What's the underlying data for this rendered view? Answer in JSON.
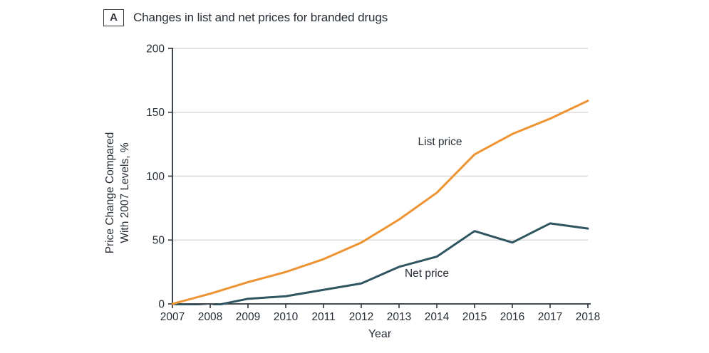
{
  "panel": {
    "label": "A",
    "title": "Changes in list and net prices for branded drugs"
  },
  "chart_data": {
    "type": "line",
    "x": [
      2007,
      2008,
      2009,
      2010,
      2011,
      2012,
      2013,
      2014,
      2015,
      2016,
      2017,
      2018
    ],
    "series": [
      {
        "name": "Net price",
        "color": "#2F5560",
        "values": [
          0,
          -2,
          4,
          6,
          11,
          16,
          29,
          37,
          57,
          48,
          63,
          59
        ]
      },
      {
        "name": "List price",
        "color": "#EE9331",
        "values": [
          0,
          8,
          17,
          25,
          35,
          48,
          66,
          87,
          117,
          133,
          145,
          159
        ]
      }
    ],
    "xlabel": "Year",
    "ylabel_lines": [
      "Price Change Compared",
      "With 2007 Levels, %"
    ],
    "ylim": [
      0,
      200
    ],
    "yticks": [
      0,
      50,
      100,
      150,
      200
    ],
    "grid": "horizontal-gridlines-at-50-100-150-200",
    "legend_position": "inline-annotations",
    "annotations": [
      {
        "text": "List price",
        "x": 2013.5,
        "y": 126,
        "series": "List price"
      },
      {
        "text": "Net price",
        "x": 2013.15,
        "y": 23,
        "series": "Net price"
      }
    ]
  },
  "colors": {
    "background": "#ffffff",
    "axis": "#2c333b",
    "gridline": "#d9d9d9",
    "text": "#272e36",
    "list_price_line": "#EE9331",
    "net_price_line": "#2F5560"
  }
}
